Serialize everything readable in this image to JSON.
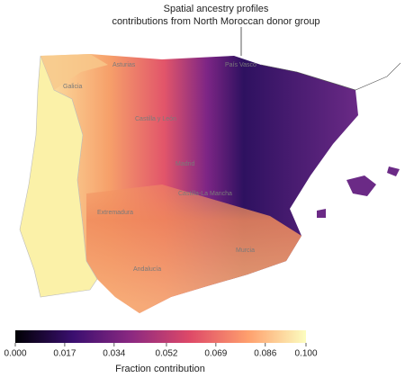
{
  "title": "Spatial ancestry profiles",
  "subtitle": "contributions from North Moroccan donor group",
  "regions": [
    "Galicia",
    "Asturias",
    "País Vasco",
    "Castilla y León",
    "Madrid",
    "Castilla-La Mancha",
    "Extremadura",
    "Andalucía",
    "Murcia"
  ],
  "colorbar": {
    "label": "Fraction contribution",
    "lim": [
      0,
      0.1
    ],
    "ticks": [
      {
        "value": 0,
        "label": "0.000"
      },
      0.017,
      0.034,
      0.052,
      0.069,
      0.086,
      {
        "value": 0.1,
        "label": "0.100"
      }
    ]
  }
}
